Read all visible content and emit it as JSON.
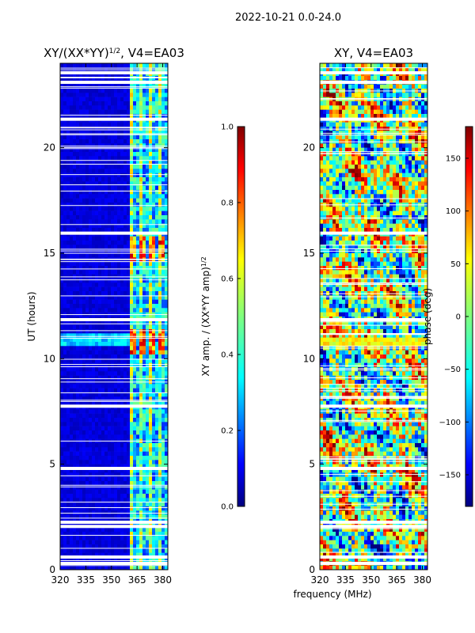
{
  "figure_title": "2022-10-21 0.0-24.0",
  "shared_xlabel": "frequency (MHz)",
  "colors": {
    "jet": [
      "#00007f",
      "#0000ff",
      "#007fff",
      "#00ffff",
      "#7fff7f",
      "#ffff00",
      "#ff7f00",
      "#ff0000",
      "#7f0000"
    ],
    "flag_color": "#ffffff",
    "axis_color": "#000000"
  },
  "chart_data": [
    {
      "type": "heatmap",
      "id": "amp",
      "title_main": "XY/(XX*YY)",
      "title_sup": "1/2",
      "title_tail": ", V4=EA03",
      "xlabel": "",
      "ylabel": "UT (hours)",
      "xlim": [
        320,
        383
      ],
      "ylim": [
        0,
        24
      ],
      "xticks": [
        320,
        335,
        350,
        365,
        380
      ],
      "yticks": [
        0,
        5,
        10,
        15,
        20
      ],
      "colorbar": {
        "label_main": "XY amp. / (XX*YY amp)",
        "label_sup": "1/2",
        "range": [
          0.0,
          1.0
        ],
        "ticks": [
          "0.0",
          "0.2",
          "0.4",
          "0.6",
          "0.8",
          "1.0"
        ]
      },
      "active_band_mhz": [
        360,
        383
      ],
      "hot_hour_ranges": [
        [
          10.2,
          11.5
        ],
        [
          14.6,
          15.9
        ]
      ]
    },
    {
      "type": "heatmap",
      "id": "phase",
      "title_main": "XY, V4=EA03",
      "xlabel": "",
      "ylabel": "",
      "xlim": [
        320,
        383
      ],
      "ylim": [
        0,
        24
      ],
      "xticks": [
        320,
        335,
        350,
        365,
        380
      ],
      "yticks": [
        0,
        5,
        10,
        15,
        20
      ],
      "colorbar": {
        "label": "phase (deg)",
        "range": [
          -180,
          180
        ],
        "ticks": [
          "150",
          "100",
          "50",
          "0",
          "−50",
          "−100",
          "−150"
        ],
        "tick_values": [
          150,
          100,
          50,
          0,
          -50,
          -100,
          -150
        ]
      },
      "flagged_hours": [
        0.3,
        0.6,
        2.05,
        2.25,
        4.8,
        7.75,
        11.85,
        15.95,
        21.35,
        23.1,
        23.55
      ]
    }
  ]
}
